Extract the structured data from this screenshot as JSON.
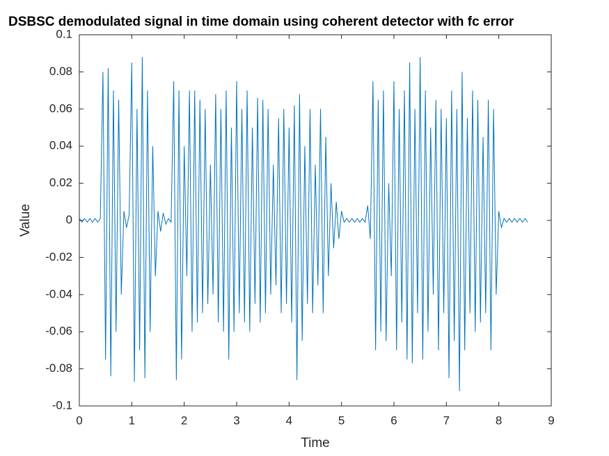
{
  "chart_data": {
    "type": "line",
    "title": "DSBSC demodulated signal in time domain using coherent detector with fc error",
    "x_label": "Time",
    "y_label": "Value",
    "color": "#0072bd",
    "grid": false,
    "box": true,
    "xlim": [
      0,
      9
    ],
    "xticks": [
      0,
      1,
      2,
      3,
      4,
      5,
      6,
      7,
      8,
      9
    ],
    "ylim": [
      -0.1,
      0.1
    ],
    "yticks": [
      -0.1,
      -0.08,
      -0.06,
      -0.04,
      -0.02,
      0,
      0.02,
      0.04,
      0.06,
      0.08,
      0.1
    ],
    "x": [
      0,
      0.05,
      0.1,
      0.15,
      0.2,
      0.25,
      0.3,
      0.35,
      0.4,
      0.45,
      0.5,
      0.55,
      0.6,
      0.65,
      0.7,
      0.75,
      0.8,
      0.85,
      0.9,
      0.95,
      1,
      1.05,
      1.1,
      1.15,
      1.2,
      1.25,
      1.3,
      1.35,
      1.4,
      1.45,
      1.5,
      1.55,
      1.6,
      1.65,
      1.7,
      1.75,
      1.8,
      1.85,
      1.9,
      1.95,
      2,
      2.05,
      2.1,
      2.15,
      2.2,
      2.25,
      2.3,
      2.35,
      2.4,
      2.45,
      2.5,
      2.55,
      2.6,
      2.65,
      2.7,
      2.75,
      2.8,
      2.85,
      2.9,
      2.95,
      3,
      3.05,
      3.1,
      3.15,
      3.2,
      3.25,
      3.3,
      3.35,
      3.4,
      3.45,
      3.5,
      3.55,
      3.6,
      3.65,
      3.7,
      3.75,
      3.8,
      3.85,
      3.9,
      3.95,
      4,
      4.05,
      4.1,
      4.15,
      4.2,
      4.25,
      4.3,
      4.35,
      4.4,
      4.45,
      4.5,
      4.55,
      4.6,
      4.65,
      4.7,
      4.75,
      4.8,
      4.85,
      4.9,
      4.95,
      5,
      5.05,
      5.1,
      5.15,
      5.2,
      5.25,
      5.3,
      5.35,
      5.4,
      5.45,
      5.5,
      5.55,
      5.6,
      5.65,
      5.7,
      5.75,
      5.8,
      5.85,
      5.9,
      5.95,
      6,
      6.05,
      6.1,
      6.15,
      6.2,
      6.25,
      6.3,
      6.35,
      6.4,
      6.45,
      6.5,
      6.55,
      6.6,
      6.65,
      6.7,
      6.75,
      6.8,
      6.85,
      6.9,
      6.95,
      7,
      7.05,
      7.1,
      7.15,
      7.2,
      7.25,
      7.3,
      7.35,
      7.4,
      7.45,
      7.5,
      7.55,
      7.6,
      7.65,
      7.7,
      7.75,
      7.8,
      7.85,
      7.9,
      7.95,
      8,
      8.05,
      8.1,
      8.15,
      8.2,
      8.25,
      8.3,
      8.35,
      8.4,
      8.45,
      8.5,
      8.55
    ],
    "values": [
      0.001,
      -0.001,
      0.001,
      -0.001,
      0.001,
      -0.001,
      0.001,
      -0.001,
      0.001,
      0.08,
      -0.075,
      0.082,
      -0.084,
      0.07,
      -0.06,
      0.065,
      -0.04,
      0.005,
      -0.004,
      0.003,
      0.085,
      -0.087,
      0.06,
      -0.07,
      0.088,
      -0.085,
      0.07,
      -0.06,
      0.04,
      -0.03,
      0.005,
      -0.006,
      0.004,
      -0.002,
      0.001,
      -0.001,
      0.075,
      -0.086,
      0.07,
      -0.075,
      0.04,
      -0.03,
      0.07,
      -0.06,
      0.07,
      -0.055,
      0.065,
      -0.05,
      0.06,
      -0.045,
      0.03,
      -0.04,
      0.068,
      -0.055,
      0.06,
      -0.06,
      0.07,
      -0.075,
      0.05,
      -0.06,
      0.075,
      -0.05,
      0.06,
      -0.055,
      0.07,
      -0.06,
      0.05,
      -0.045,
      0.066,
      -0.055,
      0.065,
      -0.05,
      0.06,
      -0.04,
      0.03,
      -0.035,
      0.055,
      -0.05,
      0.06,
      -0.045,
      0.05,
      -0.055,
      0.062,
      -0.086,
      0.068,
      -0.065,
      0.04,
      -0.045,
      0.06,
      -0.05,
      0.03,
      -0.035,
      0.06,
      -0.05,
      0.045,
      -0.03,
      0.02,
      -0.015,
      0.01,
      -0.01,
      0.005,
      -0.001,
      0.001,
      -0.001,
      0.001,
      -0.001,
      0.001,
      -0.001,
      0.001,
      -0.001,
      0.008,
      -0.01,
      0.075,
      -0.07,
      0.065,
      -0.06,
      0.07,
      -0.065,
      0.02,
      -0.03,
      0.075,
      -0.07,
      0.06,
      -0.055,
      0.07,
      -0.075,
      0.085,
      -0.077,
      0.06,
      -0.05,
      0.088,
      -0.075,
      0.07,
      -0.06,
      0.05,
      -0.04,
      0.065,
      -0.07,
      0.06,
      -0.05,
      0.055,
      -0.085,
      0.07,
      -0.065,
      0.06,
      -0.092,
      0.08,
      -0.07,
      0.055,
      -0.05,
      0.07,
      -0.06,
      0.065,
      -0.055,
      0.045,
      -0.05,
      0.065,
      -0.07,
      0.06,
      -0.04,
      0.005,
      -0.004,
      0.001,
      -0.001,
      0.001,
      -0.001,
      0.001,
      -0.001,
      0.001,
      -0.001,
      0.001,
      -0.001
    ]
  }
}
